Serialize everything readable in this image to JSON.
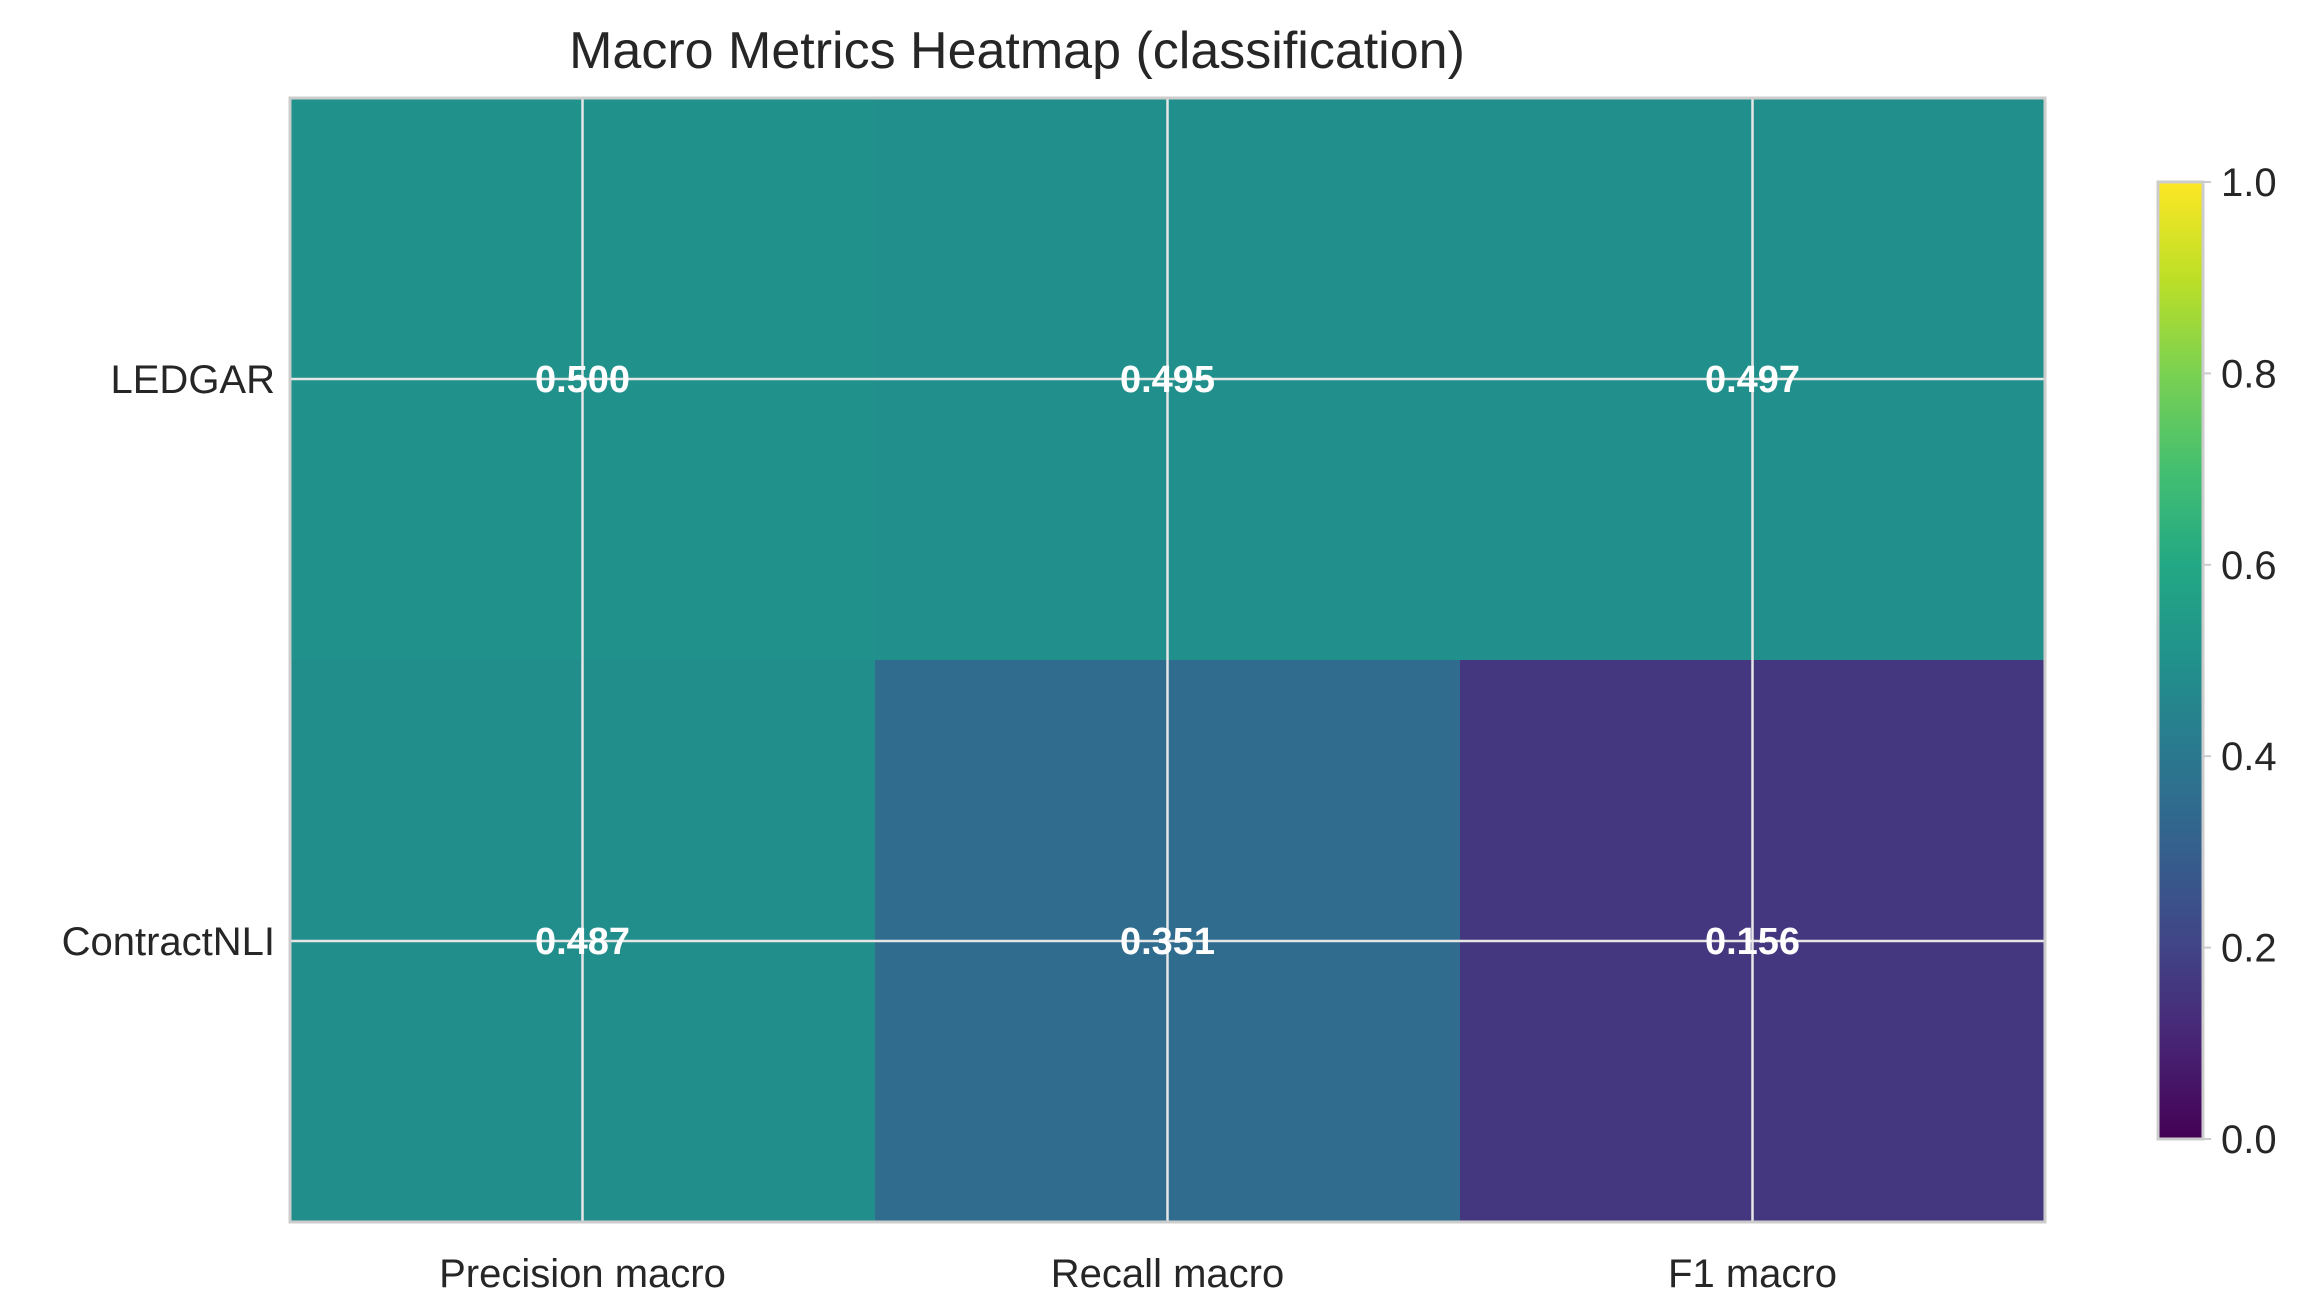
{
  "chart_data": {
    "type": "heatmap",
    "title": "Macro Metrics Heatmap (classification)",
    "xlabel": "",
    "ylabel": "",
    "rows": [
      "LEDGAR",
      "ContractNLI"
    ],
    "columns": [
      "Precision macro",
      "Recall macro",
      "F1 macro"
    ],
    "values": [
      [
        0.5,
        0.495,
        0.497
      ],
      [
        0.487,
        0.351,
        0.156
      ]
    ],
    "value_labels": [
      [
        "0.500",
        "0.495",
        "0.497"
      ],
      [
        "0.487",
        "0.351",
        "0.156"
      ]
    ],
    "colormap": "viridis",
    "colorbar": {
      "range": [
        0.0,
        1.0
      ],
      "ticks": [
        0.0,
        0.2,
        0.4,
        0.6,
        0.8,
        1.0
      ],
      "tick_labels": [
        "0.0",
        "0.2",
        "0.4",
        "0.6",
        "0.8",
        "1.0"
      ]
    },
    "grid": true
  },
  "colors": {
    "grid": "#e6e6e6",
    "frame": "#cccccc",
    "text": "#262626",
    "cell_text": "#ffffff"
  }
}
